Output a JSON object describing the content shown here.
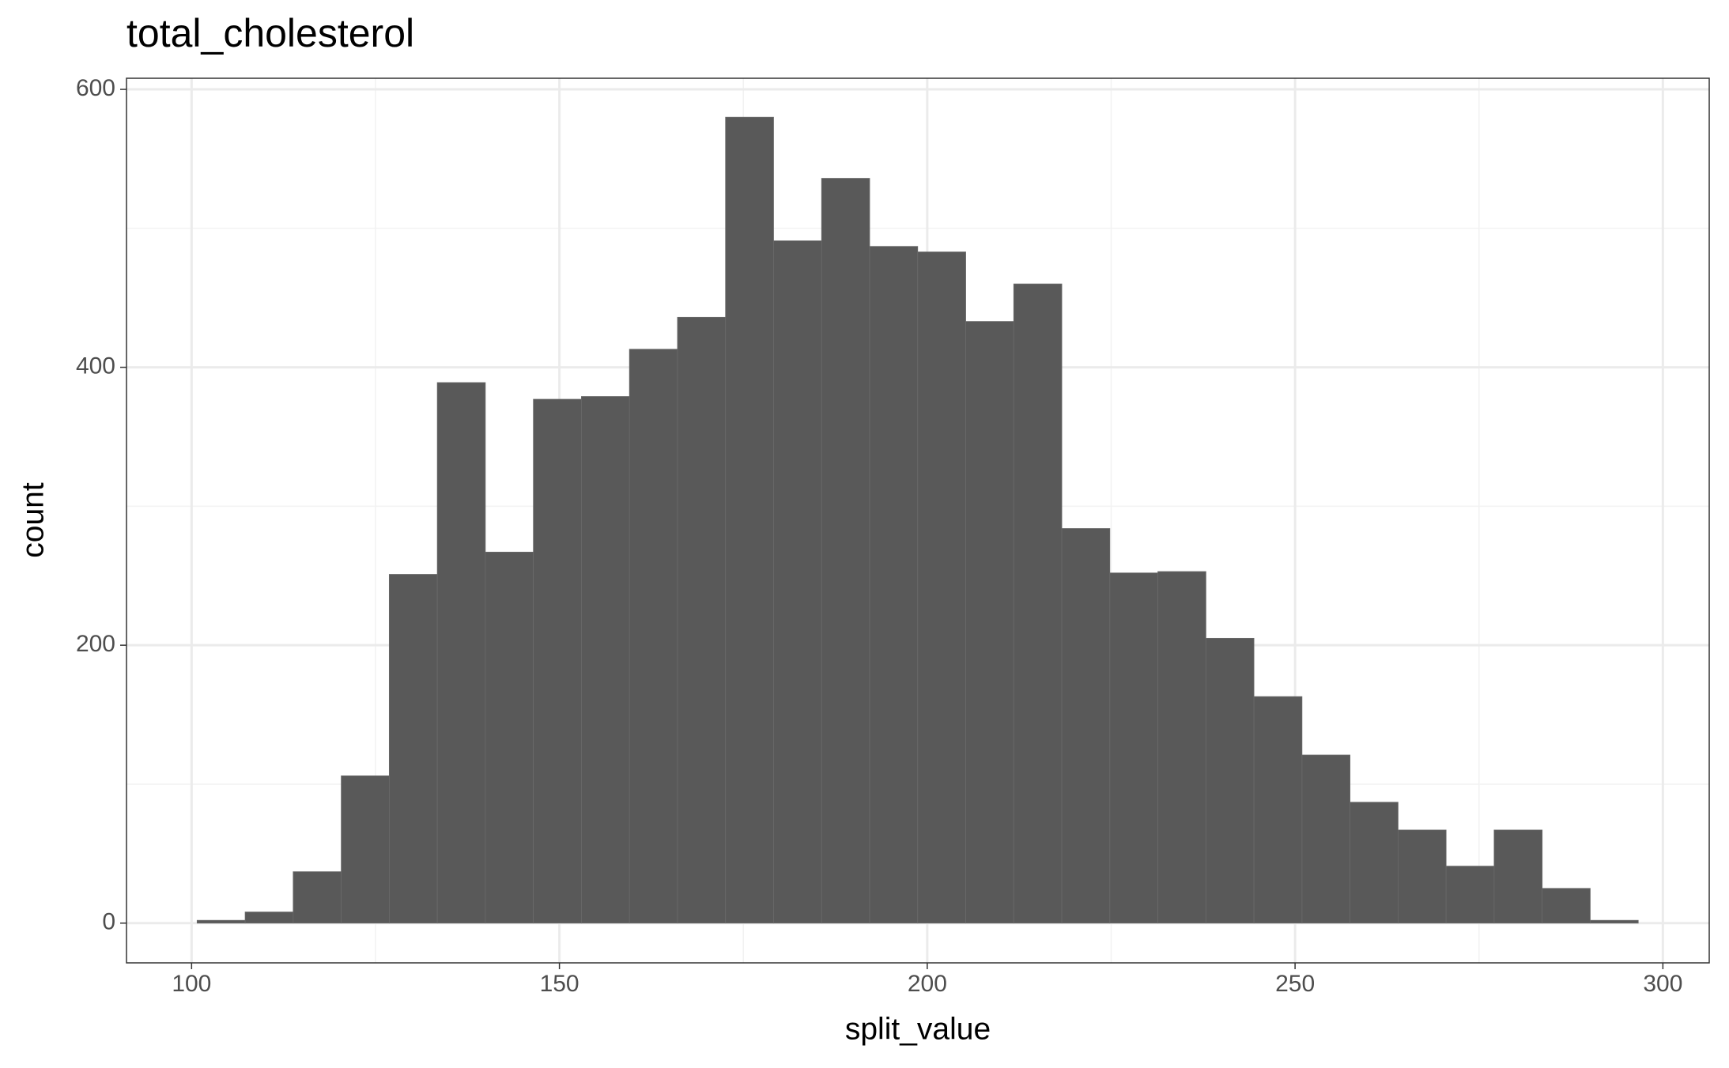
{
  "chart_data": {
    "type": "histogram",
    "title": "total_cholesterol",
    "x_label": "split_value",
    "y_label": "count",
    "bins": [
      100.75,
      107.28,
      113.81,
      120.34,
      126.87,
      133.4,
      139.93,
      146.46,
      152.99,
      159.52,
      166.05,
      172.58,
      179.11,
      185.64,
      192.17,
      198.7,
      205.23,
      211.76,
      218.29,
      224.82,
      231.35,
      237.88,
      244.41,
      250.94,
      257.47,
      264,
      270.53,
      277.06,
      283.59,
      290.12,
      296.65
    ],
    "values": [
      2,
      8,
      37,
      106,
      251,
      389,
      267,
      377,
      379,
      413,
      436,
      580,
      491,
      536,
      487,
      483,
      433,
      460,
      284,
      252,
      253,
      205,
      163,
      121,
      87,
      67,
      41,
      67,
      25,
      2
    ],
    "color": "#595959",
    "xlim": [
      91.15,
      306.3
    ],
    "ylim": [
      -28.6,
      608
    ],
    "xticks": [
      100,
      150,
      200,
      250,
      300
    ],
    "yticks": [
      0,
      200,
      400,
      600
    ],
    "x_minor_ticks": [
      125,
      175,
      225,
      275
    ],
    "y_minor_ticks": [
      100,
      300,
      500
    ],
    "grid": true
  }
}
